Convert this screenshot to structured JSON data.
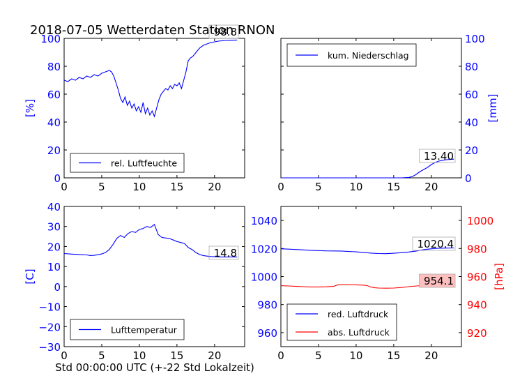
{
  "title": "2018-07-05 Wetterdaten Station RNON",
  "xlabel": "Std 00:00:00 UTC (+-22 Std Lokalzeit)",
  "colors": {
    "blue": "#0000ff",
    "red": "#ff0000",
    "annot_bg": "#ffbfbf"
  },
  "chart_data": [
    {
      "type": "line",
      "panel": "humidity",
      "ylabel": "[%]",
      "xlim": [
        0,
        24
      ],
      "ylim": [
        0,
        100
      ],
      "xticks": [
        0,
        5,
        10,
        15,
        20
      ],
      "yticks": [
        0,
        20,
        40,
        60,
        80,
        100
      ],
      "legend": "bottom-left",
      "annotation": "98.8",
      "series": [
        {
          "name": "rel. Luftfeuchte",
          "x": [
            0,
            0.5,
            1,
            1.5,
            2,
            2.5,
            3,
            3.5,
            4,
            4.5,
            5,
            5.5,
            6,
            6.3,
            6.6,
            6.9,
            7.2,
            7.5,
            7.8,
            8.1,
            8.4,
            8.7,
            9,
            9.3,
            9.6,
            9.9,
            10.2,
            10.5,
            10.8,
            11.1,
            11.4,
            11.7,
            12,
            12.3,
            12.6,
            12.9,
            13.2,
            13.5,
            13.8,
            14.1,
            14.4,
            14.7,
            15,
            15.3,
            15.6,
            15.9,
            16.2,
            16.5,
            16.8,
            17.1,
            17.4,
            17.7,
            18,
            18.5,
            19,
            19.5,
            20,
            20.5,
            21,
            21.5,
            22,
            22.5,
            23
          ],
          "y": [
            70,
            69,
            71,
            70,
            72,
            71,
            73,
            72,
            74,
            73,
            75,
            76,
            77,
            76,
            73,
            68,
            63,
            57,
            54,
            58,
            52,
            55,
            50,
            53,
            48,
            51,
            47,
            54,
            46,
            50,
            45,
            48,
            44,
            50,
            56,
            60,
            62,
            64,
            63,
            66,
            64,
            67,
            66,
            68,
            64,
            70,
            76,
            84,
            86,
            87,
            89,
            91,
            93,
            95,
            96,
            97,
            97.5,
            98,
            98.3,
            98.5,
            98.6,
            98.7,
            98.8
          ]
        }
      ]
    },
    {
      "type": "line",
      "panel": "precipitation",
      "ylabel": "[mm]",
      "xlim": [
        0,
        24
      ],
      "ylim": [
        0,
        100
      ],
      "xticks": [
        0,
        5,
        10,
        15,
        20
      ],
      "yticks": [
        0,
        20,
        40,
        60,
        80,
        100
      ],
      "legend": "top-left",
      "annotation": "13.40",
      "series": [
        {
          "name": "kum. Niederschlag",
          "x": [
            0,
            5,
            10,
            15,
            16,
            17,
            17.5,
            18,
            18.5,
            19,
            19.5,
            20,
            20.5,
            21,
            21.5,
            22,
            22.5,
            23
          ],
          "y": [
            0,
            0,
            0,
            0,
            0,
            0.3,
            1,
            2.5,
            4.5,
            6,
            7.5,
            9.5,
            11,
            12,
            12.6,
            13,
            13.2,
            13.4
          ]
        }
      ]
    },
    {
      "type": "line",
      "panel": "temperature",
      "ylabel": "[C]",
      "xlim": [
        0,
        24
      ],
      "ylim": [
        -30,
        40
      ],
      "xticks": [
        0,
        5,
        10,
        15,
        20
      ],
      "yticks": [
        -30,
        -20,
        -10,
        0,
        10,
        20,
        30,
        40
      ],
      "legend": "bottom-left",
      "annotation": "14.8",
      "series": [
        {
          "name": "Lufttemperatur",
          "x": [
            0,
            1,
            2,
            3,
            3.5,
            4,
            4.5,
            5,
            5.5,
            6,
            6.5,
            7,
            7.5,
            8,
            8.5,
            9,
            9.5,
            10,
            10.5,
            11,
            11.5,
            12,
            12.5,
            13,
            14,
            15,
            15.5,
            16,
            16.5,
            17,
            17.5,
            18,
            18.5,
            19,
            19.5,
            20,
            21,
            22,
            23
          ],
          "y": [
            16.5,
            16.2,
            16,
            15.8,
            15.5,
            15.6,
            15.9,
            16.3,
            17,
            18.5,
            21,
            24,
            25.5,
            24.5,
            26.5,
            27.5,
            27,
            28.5,
            29,
            30,
            29.5,
            31,
            26,
            24.5,
            24,
            22.5,
            22,
            21.5,
            19.5,
            18.5,
            17,
            16,
            15.5,
            15.2,
            15,
            14.9,
            14.8,
            14.8,
            14.8
          ]
        }
      ]
    },
    {
      "type": "line",
      "panel": "pressure",
      "ylabel_right": "[hPa]",
      "xlim": [
        0,
        24
      ],
      "ylim": [
        950,
        1050
      ],
      "ylim_right": [
        910,
        1010
      ],
      "xticks": [
        0,
        5,
        10,
        15,
        20
      ],
      "yticks": [
        960,
        980,
        1000,
        1020,
        1040
      ],
      "yticks_right": [
        920,
        940,
        960,
        980,
        1000
      ],
      "legend": "bottom-left",
      "annotations": [
        "1020.4",
        "954.1"
      ],
      "series": [
        {
          "name": "red. Luftdruck",
          "axis": "left",
          "color": "#0000ff",
          "x": [
            0,
            2,
            4,
            6,
            8,
            10,
            12,
            13,
            14,
            15,
            16,
            17,
            18,
            19,
            20,
            21,
            22,
            23
          ],
          "y": [
            1019.8,
            1019.3,
            1018.7,
            1018.3,
            1018.2,
            1017.6,
            1016.7,
            1016.4,
            1016.3,
            1016.6,
            1017,
            1017.5,
            1018.2,
            1019.2,
            1019.8,
            1020.2,
            1020.3,
            1020.4
          ]
        },
        {
          "name": "abs. Luftdruck",
          "axis": "right",
          "color": "#ff0000",
          "x": [
            0,
            1,
            2,
            3,
            4,
            5,
            6,
            7,
            7.5,
            8,
            9,
            10,
            11,
            11.5,
            12,
            12.5,
            13,
            14,
            15,
            16,
            17,
            18,
            19,
            20,
            21,
            22,
            23
          ],
          "y": [
            953.5,
            953.3,
            953,
            952.8,
            952.6,
            952.6,
            952.7,
            953,
            954,
            954.3,
            954.2,
            954.1,
            953.9,
            953.5,
            952.5,
            952,
            951.8,
            951.7,
            951.8,
            952.2,
            952.8,
            953.3,
            953.7,
            953.9,
            954,
            954.1,
            954.1
          ]
        }
      ]
    }
  ]
}
